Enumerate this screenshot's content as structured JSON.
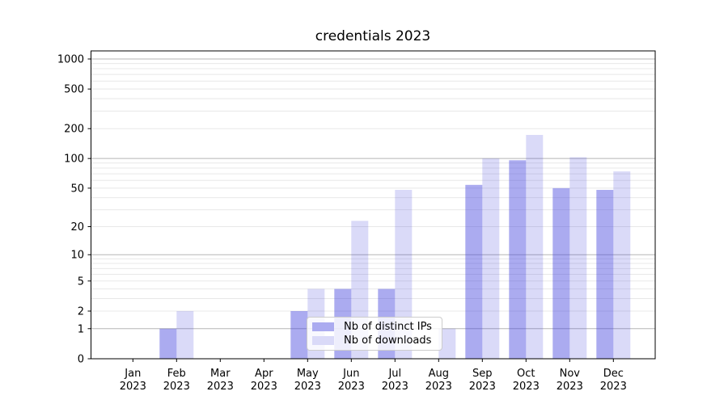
{
  "chart_data": {
    "type": "bar",
    "title": "credentials 2023",
    "categories": [
      "Jan",
      "Feb",
      "Mar",
      "Apr",
      "May",
      "Jun",
      "Jul",
      "Aug",
      "Sep",
      "Oct",
      "Nov",
      "Dec"
    ],
    "year_label": "2023",
    "series": [
      {
        "name": "Nb of distinct IPs",
        "values": [
          0,
          1,
          0,
          0,
          2,
          4,
          4,
          0,
          54,
          96,
          50,
          48
        ],
        "color": "rgba(68,68,221,0.45)",
        "legend_color": "#ababf0"
      },
      {
        "name": "Nb of downloads",
        "values": [
          0,
          2,
          0,
          0,
          4,
          23,
          48,
          1,
          100,
          173,
          103,
          74
        ],
        "color": "rgba(68,68,221,0.2)",
        "legend_color": "#dadaf8"
      }
    ],
    "yscale": "log1p",
    "yticks": [
      0,
      1,
      2,
      5,
      10,
      20,
      50,
      100,
      200,
      500,
      1000
    ],
    "ytick_labels": [
      "0",
      "1",
      "2",
      "5",
      "10",
      "20",
      "50",
      "100",
      "200",
      "500",
      "1000"
    ],
    "ylim": [
      0,
      1205
    ],
    "xlabel": "",
    "ylabel": "",
    "grid": true,
    "legend_position": "inside lower-center"
  },
  "colors": {
    "background": "#ffffff",
    "grid_major": "#b5b5b5",
    "grid_minor": "#e8e8e8",
    "axis": "#000000",
    "legend_border": "#cccccc",
    "legend_background": "rgba(255,255,255,0.8)"
  }
}
